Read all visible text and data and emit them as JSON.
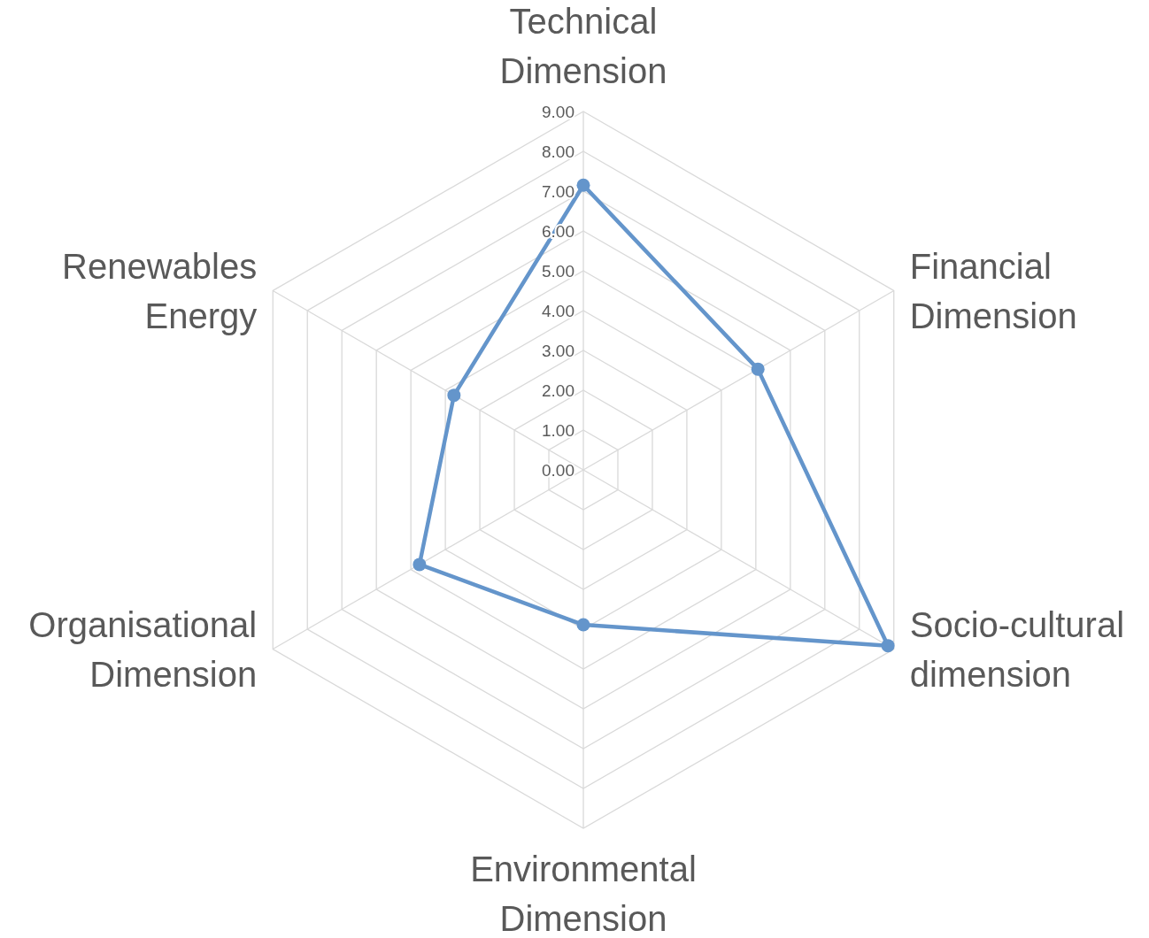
{
  "chart_data": {
    "type": "radar",
    "categories": [
      "Technical Dimension",
      "Financial Dimension",
      "Socio-cultural dimension",
      "Environmental Dimension",
      "Organisational Dimension",
      "Renewables Energy"
    ],
    "series": [
      {
        "color": "#6495cb",
        "values": [
          7.15,
          5.06,
          8.83,
          3.89,
          4.75,
          3.75
        ]
      }
    ],
    "ylim": [
      0,
      9
    ],
    "yticks": [
      {
        "value": 0,
        "label": "0.00"
      },
      {
        "value": 1,
        "label": "1.00"
      },
      {
        "value": 2,
        "label": "2.00"
      },
      {
        "value": 3,
        "label": "3.00"
      },
      {
        "value": 4,
        "label": "4.00"
      },
      {
        "value": 5,
        "label": "5.00"
      },
      {
        "value": 6,
        "label": "6.00"
      },
      {
        "value": 7,
        "label": "7.00"
      },
      {
        "value": 8,
        "label": "8.00"
      },
      {
        "value": 9,
        "label": "9.00"
      }
    ],
    "grid": true,
    "marker": "circle",
    "line_style": "solid"
  }
}
